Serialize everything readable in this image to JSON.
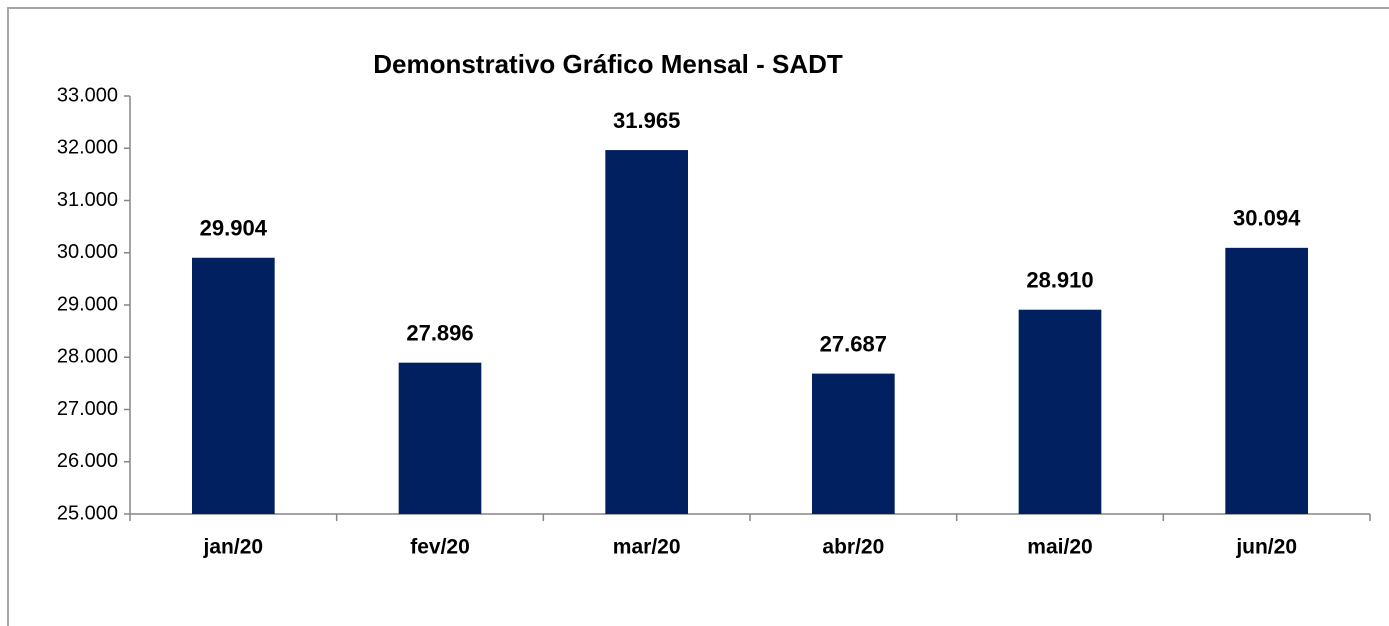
{
  "chart_data": {
    "type": "bar",
    "title": "Demonstrativo Gráfico Mensal - SADT",
    "categories": [
      "jan/20",
      "fev/20",
      "mar/20",
      "abr/20",
      "mai/20",
      "jun/20"
    ],
    "values": [
      29904,
      27896,
      31965,
      27687,
      28910,
      30094
    ],
    "value_labels": [
      "29.904",
      "27.896",
      "31.965",
      "27.687",
      "28.910",
      "30.094"
    ],
    "color": "#002060",
    "ylim": [
      25000,
      33000
    ],
    "yticks": [
      {
        "value": 25000,
        "label": "25.000"
      },
      {
        "value": 26000,
        "label": "26.000"
      },
      {
        "value": 27000,
        "label": "27.000"
      },
      {
        "value": 28000,
        "label": "28.000"
      },
      {
        "value": 29000,
        "label": "29.000"
      },
      {
        "value": 30000,
        "label": "30.000"
      },
      {
        "value": 31000,
        "label": "31.000"
      },
      {
        "value": 32000,
        "label": "32.000"
      },
      {
        "value": 33000,
        "label": "33.000"
      }
    ],
    "grid": false
  }
}
